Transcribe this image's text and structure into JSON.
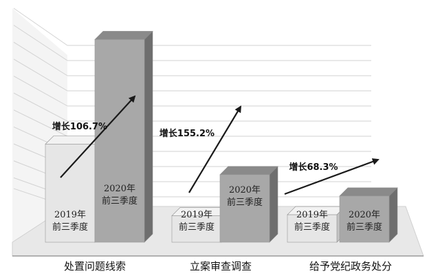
{
  "chart_data": {
    "type": "bar",
    "title": "",
    "xlabel": "",
    "ylabel": "",
    "categories": [
      "处置问题线索",
      "立案审查调查",
      "给予党纪政务处分"
    ],
    "series": [
      {
        "name": "2019年前三季度",
        "label_line1": "2019年",
        "label_line2": "前三季度",
        "values": [
          100,
          27,
          28
        ]
      },
      {
        "name": "2020年前三季度",
        "label_line1": "2020年",
        "label_line2": "前三季度",
        "values": [
          206.7,
          68.9,
          47.1
        ]
      }
    ],
    "growth_labels": [
      "增长106.7%",
      "增长155.2%",
      "增长68.3%"
    ],
    "grid": true,
    "style": "3d",
    "colors": {
      "bar_2019_front": "#e6e6e6",
      "bar_2019_side": "#c4c4c4",
      "bar_2019_top": "#f2f2f2",
      "bar_2020_front": "#a8a8a8",
      "bar_2020_side": "#6e6e6e",
      "bar_2020_top": "#8a8a8a",
      "floor": "#e8e8e8",
      "wall": "#f4f4f4",
      "grid": "#d2d2d2",
      "arrow": "#1a1a1a"
    }
  }
}
